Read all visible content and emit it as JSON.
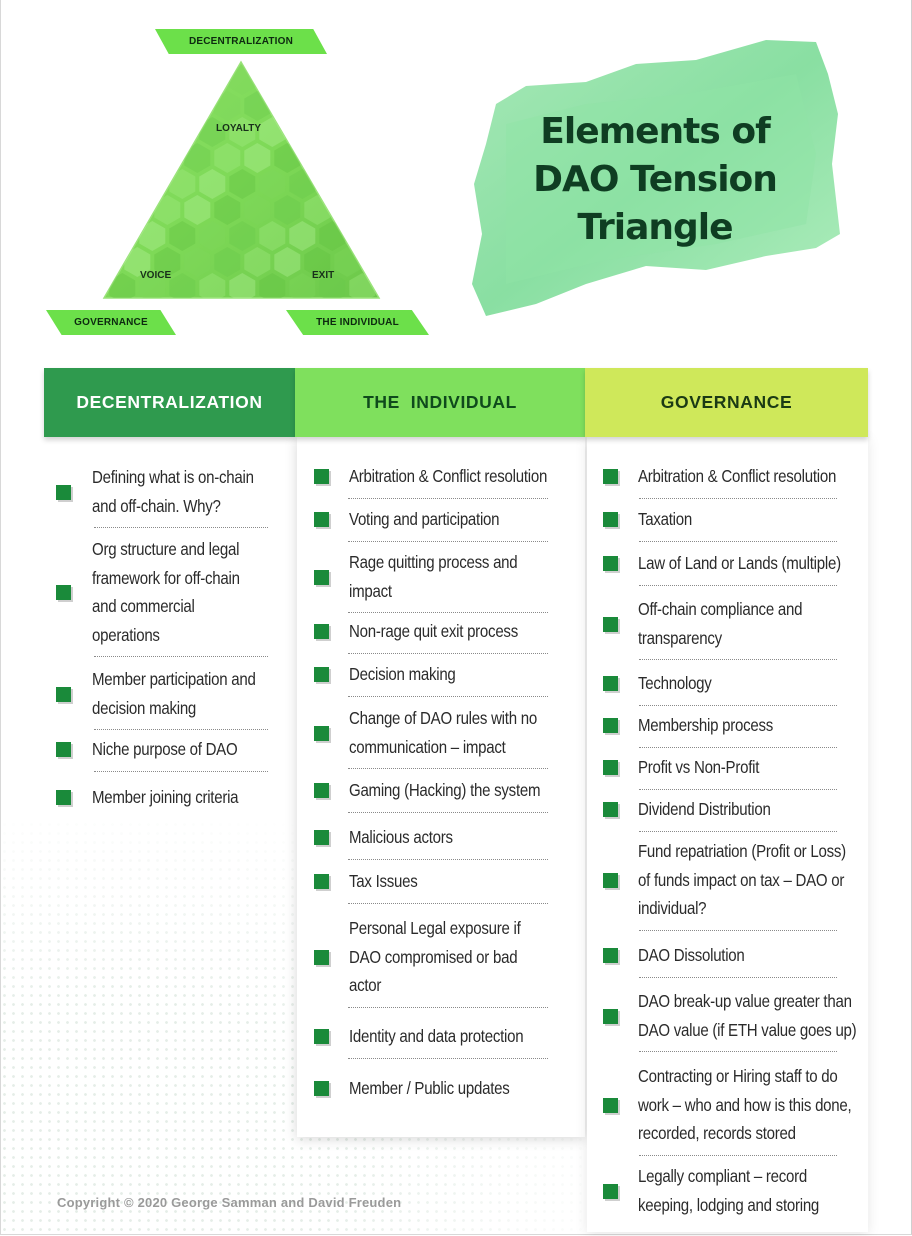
{
  "triangle": {
    "top_ribbon": "DECENTRALIZATION",
    "left_ribbon": "GOVERNANCE",
    "right_ribbon": "THE INDIVIDUAL",
    "inner_top": "LOYALTY",
    "inner_left": "VOICE",
    "inner_right": "EXIT",
    "colors": {
      "ribbon": "#6ce04a",
      "triangle": "#7ed957"
    }
  },
  "title": {
    "line1": "Elements of",
    "line2": "DAO Tension",
    "line3": "Triangle",
    "color": "#0f3d22"
  },
  "columns": [
    {
      "header": "DECENTRALIZATION",
      "header_color": "#2f9a4e",
      "items": [
        [
          "Defining what is on-chain",
          "and off-chain. Why?"
        ],
        [
          "Org structure and legal",
          "framework for off-chain",
          "and commercial",
          "operations"
        ],
        [
          "Member participation and",
          "decision making"
        ],
        [
          "Niche purpose of DAO"
        ],
        [
          "Member joining criteria"
        ]
      ]
    },
    {
      "header": "THE  INDIVIDUAL",
      "header_color": "#7fe05d",
      "items": [
        [
          "Arbitration & Conflict resolution"
        ],
        [
          "Voting and participation"
        ],
        [
          "Rage quitting process and",
          "impact"
        ],
        [
          "Non-rage quit exit process"
        ],
        [
          "Decision making"
        ],
        [
          "Change of DAO rules with no",
          "communication – impact"
        ],
        [
          "Gaming (Hacking) the system"
        ],
        [
          "Malicious actors"
        ],
        [
          "Tax Issues"
        ],
        [
          "Personal Legal exposure if",
          "DAO compromised or bad",
          "actor"
        ],
        [
          "Identity and data protection"
        ],
        [
          "Member / Public updates"
        ]
      ]
    },
    {
      "header": "GOVERNANCE",
      "header_color": "#cfe85a",
      "items": [
        [
          "Arbitration & Conflict resolution"
        ],
        [
          "Taxation"
        ],
        [
          "Law of Land or Lands (multiple)"
        ],
        [
          "Off-chain compliance and",
          "transparency"
        ],
        [
          "Technology"
        ],
        [
          "Membership process"
        ],
        [
          "Profit vs Non-Profit"
        ],
        [
          "Dividend Distribution"
        ],
        [
          "Fund repatriation (Profit or Loss)",
          "of funds impact on tax – DAO or",
          "individual?"
        ],
        [
          "DAO Dissolution"
        ],
        [
          "DAO break-up value greater than",
          "DAO value (if ETH value goes up)"
        ],
        [
          "Contracting or Hiring staff to do",
          "work – who and how is this done,",
          "recorded, records stored"
        ],
        [
          "Legally compliant – record",
          "keeping, lodging and storing"
        ]
      ]
    }
  ],
  "copyright": "Copyright © 2020 George Samman and David Freuden"
}
